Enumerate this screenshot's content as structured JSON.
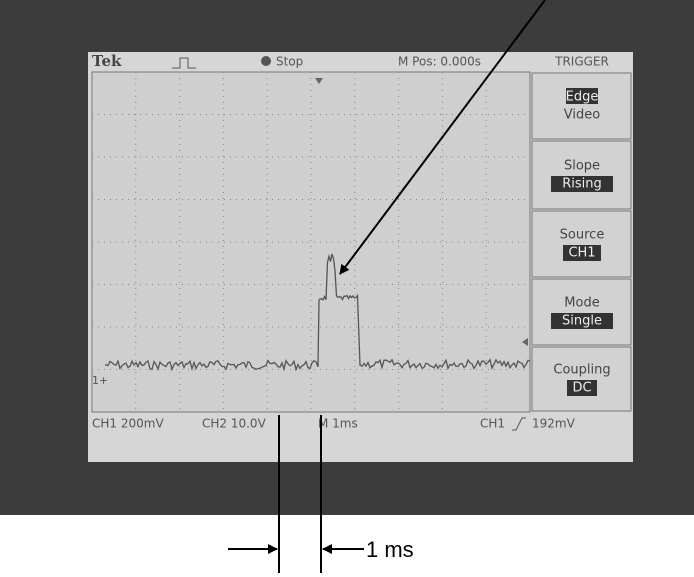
{
  "header": {
    "brand": "Tek",
    "state": "Stop",
    "position": "M Pos: 0.000s",
    "menu_title": "TRIGGER"
  },
  "menu": [
    {
      "label": "Edge",
      "sub": "Video"
    },
    {
      "label": "Slope",
      "value": "Rising"
    },
    {
      "label": "Source",
      "value": "CH1"
    },
    {
      "label": "Mode",
      "value": "Single"
    },
    {
      "label": "Coupling",
      "value": "DC"
    }
  ],
  "channel_marker": "1+",
  "status": {
    "ch1": "CH1 200mV",
    "ch2": "CH2 10.0V",
    "time": "M 1ms",
    "trigger_source": "CH1",
    "trigger_level": "192mV"
  },
  "annotation": "1 ms"
}
